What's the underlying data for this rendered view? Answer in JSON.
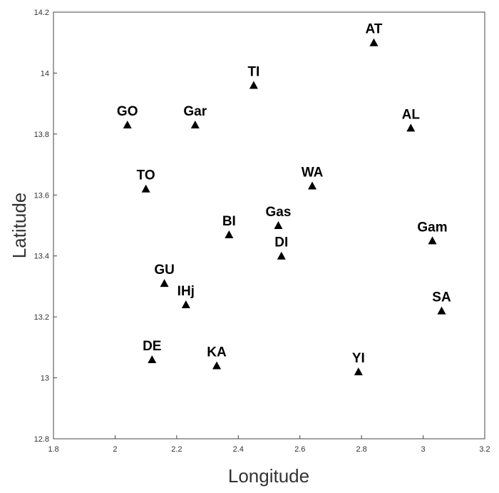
{
  "chart_data": {
    "type": "scatter",
    "xlabel": "Longitude",
    "ylabel": "Latitude",
    "xlim": [
      1.8,
      3.2
    ],
    "ylim": [
      12.8,
      14.2
    ],
    "x_ticks": [
      "1.8",
      "2",
      "2.2",
      "2.4",
      "2.6",
      "2.8",
      "3",
      "3.2"
    ],
    "y_ticks": [
      "12.8",
      "13",
      "13.2",
      "13.4",
      "13.6",
      "13.8",
      "14",
      "14.2"
    ],
    "grid": false,
    "marker": "triangle",
    "points": [
      {
        "label": "AT",
        "x": 2.84,
        "y": 14.1
      },
      {
        "label": "TI",
        "x": 2.45,
        "y": 13.96
      },
      {
        "label": "GO",
        "x": 2.04,
        "y": 13.83
      },
      {
        "label": "Gar",
        "x": 2.26,
        "y": 13.83
      },
      {
        "label": "AL",
        "x": 2.96,
        "y": 13.82
      },
      {
        "label": "TO",
        "x": 2.1,
        "y": 13.62
      },
      {
        "label": "WA",
        "x": 2.64,
        "y": 13.63
      },
      {
        "label": "BI",
        "x": 2.37,
        "y": 13.47
      },
      {
        "label": "Gas",
        "x": 2.53,
        "y": 13.5
      },
      {
        "label": "DI",
        "x": 2.54,
        "y": 13.4
      },
      {
        "label": "Gam",
        "x": 3.03,
        "y": 13.45
      },
      {
        "label": "GU",
        "x": 2.16,
        "y": 13.31
      },
      {
        "label": "IHj",
        "x": 2.23,
        "y": 13.24
      },
      {
        "label": "SA",
        "x": 3.06,
        "y": 13.22
      },
      {
        "label": "DE",
        "x": 2.12,
        "y": 13.06
      },
      {
        "label": "KA",
        "x": 2.33,
        "y": 13.04
      },
      {
        "label": "YI",
        "x": 2.79,
        "y": 13.02
      }
    ]
  }
}
